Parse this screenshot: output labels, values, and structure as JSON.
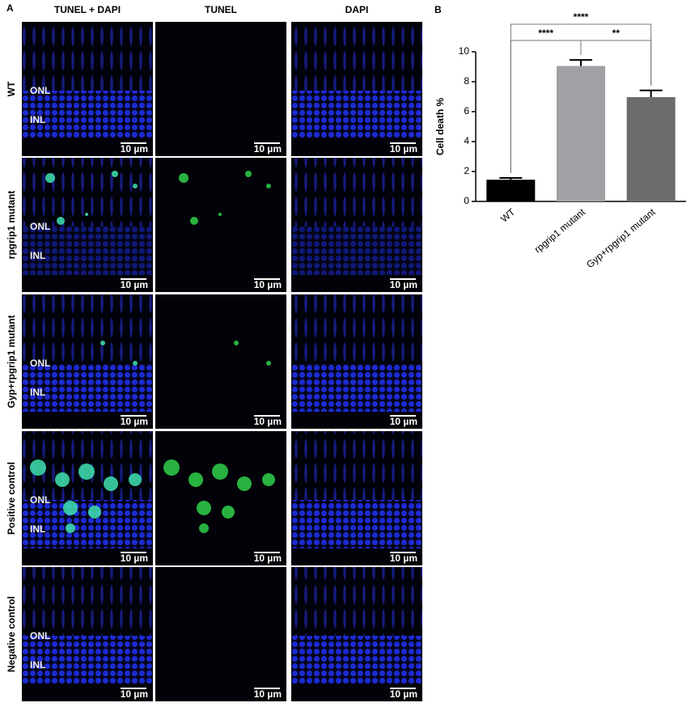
{
  "panel_a": {
    "label": "A",
    "columns": [
      "TUNEL + DAPI",
      "TUNEL",
      "DAPI"
    ],
    "rows": [
      "WT",
      "rpgrip1 mutant",
      "Gyp+rpgrip1 mutant",
      "Positive control",
      "Negative control"
    ],
    "layer_labels": [
      "ONL",
      "INL"
    ],
    "scale_bar": "10 µm"
  },
  "chart_data": {
    "type": "bar",
    "panel_label": "B",
    "ylabel": "Cell death %",
    "categories": [
      "WT",
      "rpgrip1 mutant",
      "Gyp+rpgrip1 mutant"
    ],
    "values": [
      1.45,
      9.05,
      6.97
    ],
    "errors": [
      0.12,
      0.4,
      0.45
    ],
    "colors": [
      "#000000",
      "#a1a1a5",
      "#6b6b6b"
    ],
    "ylim": [
      0,
      10
    ],
    "yticks": [
      0,
      2,
      4,
      6,
      8,
      10
    ],
    "significance": [
      {
        "from": 0,
        "to": 2,
        "label": "****"
      },
      {
        "from": 0,
        "to": 1,
        "label": "****"
      },
      {
        "from": 1,
        "to": 2,
        "label": "**"
      }
    ]
  }
}
